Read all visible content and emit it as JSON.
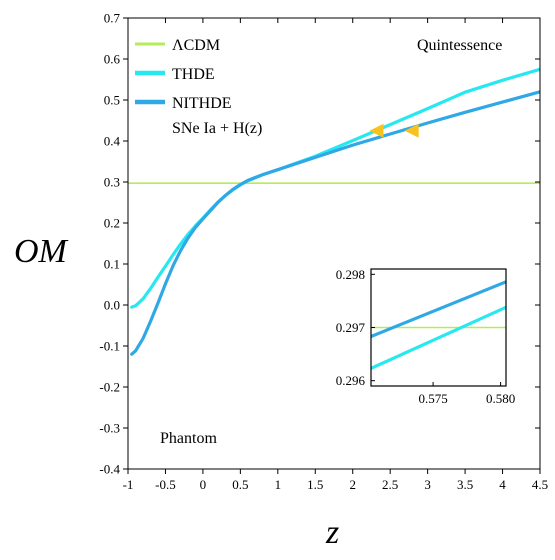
{
  "chart_data": [
    {
      "type": "line",
      "title": "",
      "xlabel": "z",
      "ylabel": "OM",
      "xlim": [
        -1.0,
        4.5
      ],
      "ylim": [
        -0.4,
        0.7
      ],
      "grid": false,
      "legend_position": "top-left",
      "x_ticks": [
        "-1",
        "-0.5",
        "0",
        "0.5",
        "1",
        "1.5",
        "2",
        "2.5",
        "3",
        "3.5",
        "4",
        "4.5"
      ],
      "y_ticks": [
        "-0.4",
        "-0.3",
        "-0.2",
        "-0.1",
        "0.0",
        "0.1",
        "0.2",
        "0.3",
        "0.4",
        "0.5",
        "0.6",
        "0.7"
      ],
      "legend_note": "SNe Ia + H(z)",
      "annotations": [
        {
          "text": "Quintessence",
          "x": 3.8,
          "y": 0.665
        },
        {
          "text": "Phantom",
          "x": -0.05,
          "y": -0.31
        }
      ],
      "series": [
        {
          "name": "ΛCDM",
          "color": "#b5ec5a",
          "x": [
            -1.0,
            4.5
          ],
          "y": [
            0.297,
            0.297
          ]
        },
        {
          "name": "THDE",
          "color": "#27e8f0",
          "x": [
            -0.95,
            -0.9,
            -0.8,
            -0.7,
            -0.6,
            -0.5,
            -0.4,
            -0.3,
            -0.2,
            -0.1,
            0.0,
            0.1,
            0.2,
            0.3,
            0.4,
            0.5,
            0.6,
            0.8,
            1.0,
            1.5,
            2.0,
            2.5,
            3.0,
            3.5,
            4.0,
            4.5
          ],
          "y": [
            -0.005,
            -0.002,
            0.015,
            0.04,
            0.068,
            0.095,
            0.122,
            0.148,
            0.172,
            0.193,
            0.212,
            0.232,
            0.251,
            0.267,
            0.281,
            0.293,
            0.303,
            0.318,
            0.33,
            0.363,
            0.401,
            0.44,
            0.479,
            0.519,
            0.548,
            0.575
          ]
        },
        {
          "name": "NITHDE",
          "color": "#2fa8e6",
          "x": [
            -0.95,
            -0.9,
            -0.8,
            -0.7,
            -0.6,
            -0.5,
            -0.4,
            -0.3,
            -0.2,
            -0.1,
            0.0,
            0.1,
            0.2,
            0.3,
            0.4,
            0.5,
            0.6,
            0.8,
            1.0,
            1.5,
            2.0,
            2.5,
            3.0,
            3.5,
            4.0,
            4.5
          ],
          "y": [
            -0.12,
            -0.112,
            -0.082,
            -0.04,
            0.005,
            0.052,
            0.095,
            0.132,
            0.163,
            0.189,
            0.21,
            0.23,
            0.25,
            0.267,
            0.282,
            0.294,
            0.304,
            0.318,
            0.33,
            0.36,
            0.39,
            0.417,
            0.444,
            0.47,
            0.495,
            0.52
          ]
        }
      ],
      "markers": [
        {
          "shape": "triangle-left",
          "color": "#f7c21e",
          "x": 2.33,
          "y": 0.425
        },
        {
          "shape": "triangle-left",
          "color": "#f7c21e",
          "x": 2.8,
          "y": 0.425
        }
      ]
    },
    {
      "type": "line",
      "title": "",
      "xlim": [
        0.5704,
        0.5804
      ],
      "ylim": [
        0.2959,
        0.2981
      ],
      "x_ticks": [
        "0.575",
        "0.580"
      ],
      "y_ticks": [
        "0.296",
        "0.297",
        "0.298"
      ],
      "series": [
        {
          "name": "ΛCDM",
          "color": "#b5ec5a",
          "x": [
            0.5704,
            0.5804
          ],
          "y": [
            0.297,
            0.297
          ]
        },
        {
          "name": "NITHDE",
          "color": "#2fa8e6",
          "x": [
            0.5704,
            0.5804
          ],
          "y": [
            0.29683,
            0.29786
          ]
        },
        {
          "name": "THDE",
          "color": "#27e8f0",
          "x": [
            0.5704,
            0.5804
          ],
          "y": [
            0.29623,
            0.29738
          ]
        }
      ]
    }
  ]
}
